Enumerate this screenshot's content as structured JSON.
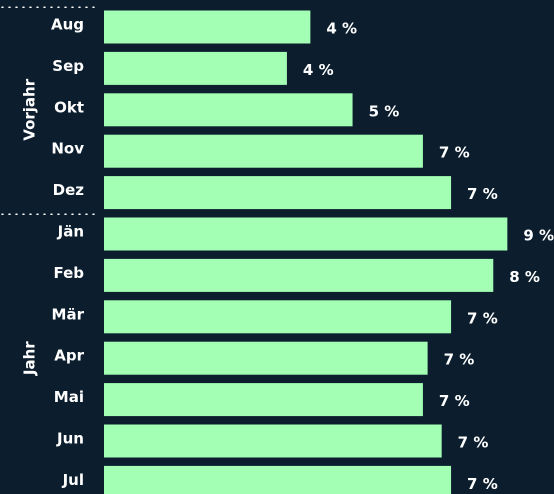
{
  "chart_data": {
    "type": "bar",
    "orientation": "horizontal",
    "color": "#a3ffb4",
    "groups": [
      {
        "name": "Vorjahr",
        "categories": [
          "Aug",
          "Sep",
          "Okt",
          "Nov",
          "Dez"
        ],
        "values": [
          4.4,
          3.9,
          5.3,
          6.8,
          7.4
        ],
        "value_labels": [
          "4 %",
          "4 %",
          "5 %",
          "7 %",
          "7 %"
        ]
      },
      {
        "name": "Jahr",
        "categories": [
          "Jän",
          "Feb",
          "Mär",
          "Apr",
          "Mai",
          "Jun",
          "Jul"
        ],
        "values": [
          8.6,
          8.3,
          7.4,
          6.9,
          6.8,
          7.2,
          7.4
        ],
        "value_labels": [
          "9 %",
          "8 %",
          "7 %",
          "7 %",
          "7 %",
          "7 %",
          "7 %"
        ]
      }
    ]
  }
}
